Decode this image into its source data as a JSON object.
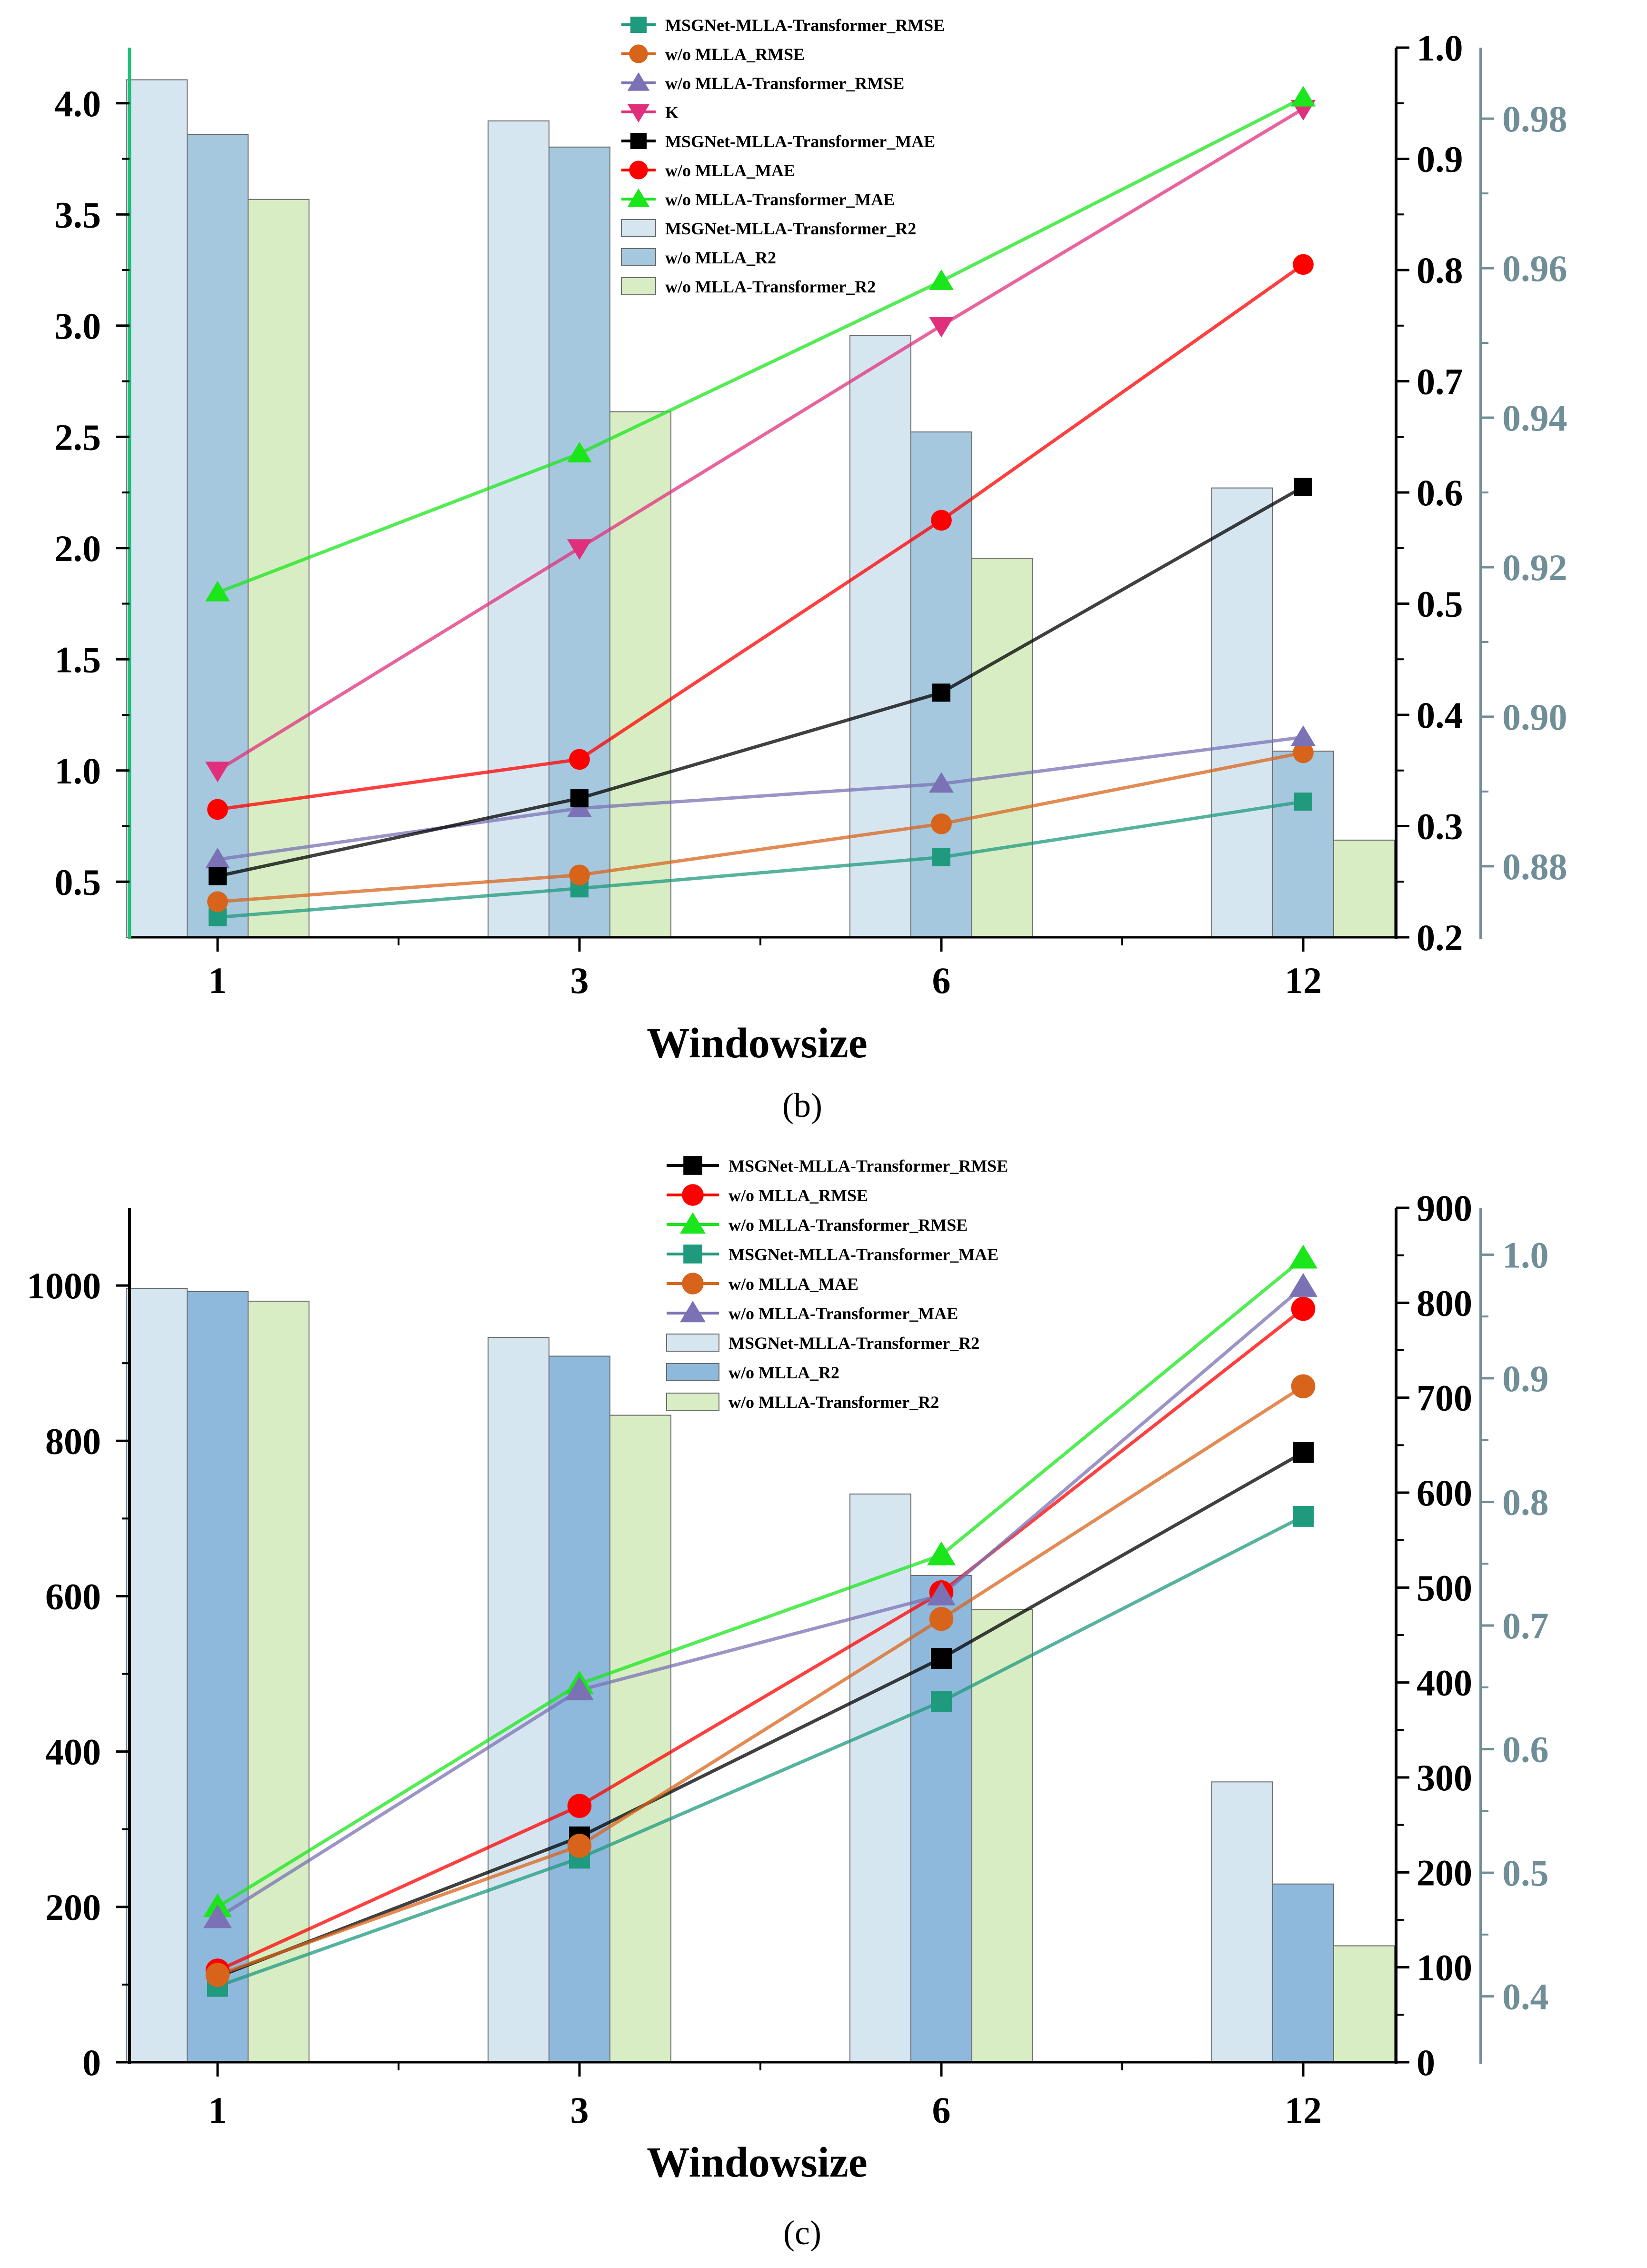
{
  "chart_data": [
    {
      "id": "b",
      "type": "bar+line",
      "caption": "(b)",
      "xlabel": "Windowsize",
      "categories": [
        "1",
        "3",
        "6",
        "12"
      ],
      "left_axis": {
        "ylim": [
          0.25,
          4.25
        ],
        "ticks": [
          0.5,
          1.0,
          1.5,
          2.0,
          2.5,
          3.0,
          3.5,
          4.0
        ],
        "tick_labels": [
          "0.5",
          "1.0",
          "1.5",
          "2.0",
          "2.5",
          "3.0",
          "3.5",
          "4.0"
        ],
        "color": "#1fbf7a"
      },
      "right_axis": {
        "ylim": [
          0.2,
          1.0
        ],
        "ticks": [
          0.2,
          0.3,
          0.4,
          0.5,
          0.6,
          0.7,
          0.8,
          0.9,
          1.0
        ],
        "tick_labels": [
          "0.2",
          "0.3",
          "0.4",
          "0.5",
          "0.6",
          "0.7",
          "0.8",
          "0.9",
          "1.0"
        ],
        "color": "#000000"
      },
      "r2_axis": {
        "ylim": [
          0.8705,
          0.9895
        ],
        "ticks": [
          0.88,
          0.9,
          0.92,
          0.94,
          0.96,
          0.98
        ],
        "tick_labels": [
          "0.88",
          "0.90",
          "0.92",
          "0.94",
          "0.96",
          "0.98"
        ],
        "color": "#6f8e98"
      },
      "bars": [
        {
          "name": "MSGNet-MLLA-Transformer_R2",
          "color": "#d6e6f1",
          "values": [
            0.9852,
            0.9797,
            0.951,
            0.9306
          ]
        },
        {
          "name": "w/o MLLA_R2",
          "color": "#a6c8df",
          "values": [
            0.9779,
            0.9762,
            0.9381,
            0.8954
          ]
        },
        {
          "name": "w/o MLLA-Transformer_R2",
          "color": "#d8edc4",
          "values": [
            0.9692,
            0.9408,
            0.9212,
            0.8835
          ]
        }
      ],
      "series": [
        {
          "name": "MSGNet-MLLA-Transformer_RMSE",
          "axis": "left",
          "marker": "square",
          "color": "#1f9a7d",
          "values": [
            0.34,
            0.47,
            0.61,
            0.86
          ]
        },
        {
          "name": "w/o MLLA_RMSE",
          "axis": "left",
          "marker": "circle",
          "color": "#d8641c",
          "values": [
            0.41,
            0.53,
            0.76,
            1.08
          ]
        },
        {
          "name": "w/o MLLA-Transformer_RMSE",
          "axis": "left",
          "marker": "triangle-up",
          "color": "#7a72b4",
          "values": [
            0.6,
            0.83,
            0.94,
            1.15
          ]
        },
        {
          "name": "K",
          "axis": "right",
          "marker": "triangle-down",
          "color": "#e0307c",
          "values": [
            0.35,
            0.55,
            0.75,
            0.945
          ]
        },
        {
          "name": "MSGNet-MLLA-Transformer_MAE",
          "axis": "right",
          "marker": "square",
          "color": "#000000",
          "values": [
            0.255,
            0.325,
            0.42,
            0.605
          ]
        },
        {
          "name": "w/o MLLA_MAE",
          "axis": "right",
          "marker": "circle",
          "color": "#ff0000",
          "values": [
            0.315,
            0.36,
            0.575,
            0.805
          ]
        },
        {
          "name": "w/o MLLA-Transformer_MAE",
          "axis": "right",
          "marker": "triangle-up",
          "color": "#1be61b",
          "values": [
            0.51,
            0.635,
            0.79,
            0.955
          ]
        }
      ],
      "legend_order": [
        "MSGNet-MLLA-Transformer_RMSE",
        "w/o MLLA_RMSE",
        "w/o MLLA-Transformer_RMSE",
        "K",
        "MSGNet-MLLA-Transformer_MAE",
        "w/o MLLA_MAE",
        "w/o MLLA-Transformer_MAE",
        "MSGNet-MLLA-Transformer_R2",
        "w/o MLLA_R2",
        "w/o MLLA-Transformer_R2"
      ]
    },
    {
      "id": "c",
      "type": "bar+line",
      "caption": "(c)",
      "xlabel": "Windowsize",
      "categories": [
        "1",
        "3",
        "6",
        "12"
      ],
      "left_axis": {
        "ylim": [
          0,
          1100
        ],
        "ticks": [
          0,
          200,
          400,
          600,
          800,
          1000
        ],
        "tick_labels": [
          "0",
          "200",
          "400",
          "600",
          "800",
          "1000"
        ],
        "color": "#000000"
      },
      "right_axis": {
        "ylim": [
          0,
          900
        ],
        "ticks": [
          0,
          100,
          200,
          300,
          400,
          500,
          600,
          700,
          800,
          900
        ],
        "tick_labels": [
          "0",
          "100",
          "200",
          "300",
          "400",
          "500",
          "600",
          "700",
          "800",
          "900"
        ],
        "color": "#000000"
      },
      "r2_axis": {
        "ylim": [
          0.3467,
          1.0379
        ],
        "ticks": [
          0.4,
          0.5,
          0.6,
          0.7,
          0.8,
          0.9,
          1.0
        ],
        "tick_labels": [
          "0.4",
          "0.5",
          "0.6",
          "0.7",
          "0.8",
          "0.9",
          "1.0"
        ],
        "color": "#6f8e98"
      },
      "bars": [
        {
          "name": "MSGNet-MLLA-Transformer_R2",
          "color": "#d6e6f1",
          "values": [
            0.9727,
            0.933,
            0.8064,
            0.5735
          ]
        },
        {
          "name": "w/o MLLA_R2",
          "color": "#8fb9dc",
          "values": [
            0.9701,
            0.9179,
            0.7405,
            0.4909
          ]
        },
        {
          "name": "w/o MLLA-Transformer_R2",
          "color": "#d8edc4",
          "values": [
            0.9624,
            0.8701,
            0.7128,
            0.4409
          ]
        }
      ],
      "series": [
        {
          "name": "MSGNet-MLLA-Transformer_RMSE",
          "axis": "left",
          "marker": "square",
          "color": "#000000",
          "values": [
            110,
            290,
            520,
            785
          ]
        },
        {
          "name": "w/o MLLA_RMSE",
          "axis": "left",
          "marker": "circle",
          "color": "#ff0000",
          "values": [
            118,
            330,
            605,
            970
          ]
        },
        {
          "name": "w/o MLLA-Transformer_RMSE",
          "axis": "left",
          "marker": "triangle-up",
          "color": "#1be61b",
          "values": [
            200,
            487,
            653,
            1035
          ]
        },
        {
          "name": "MSGNet-MLLA-Transformer_MAE",
          "axis": "right",
          "marker": "square",
          "color": "#1f9a7d",
          "values": [
            80,
            215,
            380,
            575
          ]
        },
        {
          "name": "w/o MLLA_MAE",
          "axis": "right",
          "marker": "circle",
          "color": "#d8641c",
          "values": [
            92,
            228,
            467,
            712
          ]
        },
        {
          "name": "w/o MLLA-Transformer_MAE",
          "axis": "right",
          "marker": "triangle-up",
          "color": "#7a72b4",
          "values": [
            152,
            392,
            492,
            817
          ]
        }
      ],
      "legend_order": [
        "MSGNet-MLLA-Transformer_RMSE",
        "w/o MLLA_RMSE",
        "w/o MLLA-Transformer_RMSE",
        "MSGNet-MLLA-Transformer_MAE",
        "w/o MLLA_MAE",
        "w/o MLLA-Transformer_MAE",
        "MSGNet-MLLA-Transformer_R2",
        "w/o MLLA_R2",
        "w/o MLLA-Transformer_R2"
      ]
    }
  ]
}
